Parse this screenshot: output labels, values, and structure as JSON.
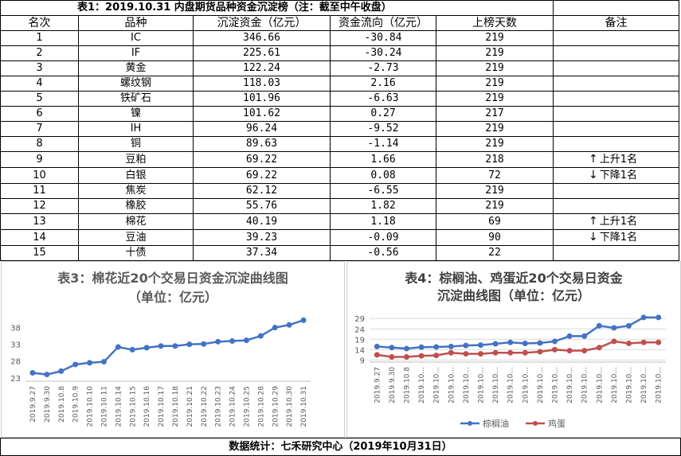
{
  "table": {
    "title": "表1：2019.10.31 内盘期货品种资金沉淀榜（注：截至中午收盘）",
    "headers": [
      "名次",
      "品种",
      "沉淀资金（亿元）",
      "资金流向（亿元）",
      "上榜天数",
      "备注"
    ],
    "rows": [
      {
        "rank": "1",
        "name": "IC",
        "fund": "346.66",
        "flow": "-30.84",
        "days": "219",
        "note": "",
        "arrow": ""
      },
      {
        "rank": "2",
        "name": "IF",
        "fund": "225.61",
        "flow": "-30.24",
        "days": "219",
        "note": "",
        "arrow": ""
      },
      {
        "rank": "3",
        "name": "黄金",
        "fund": "122.24",
        "flow": "-2.73",
        "days": "219",
        "note": "",
        "arrow": ""
      },
      {
        "rank": "4",
        "name": "螺纹钢",
        "fund": "118.03",
        "flow": "2.16",
        "days": "219",
        "note": "",
        "arrow": ""
      },
      {
        "rank": "5",
        "name": "铁矿石",
        "fund": "101.96",
        "flow": "-6.63",
        "days": "219",
        "note": "",
        "arrow": ""
      },
      {
        "rank": "6",
        "name": "镍",
        "fund": "101.62",
        "flow": "0.27",
        "days": "217",
        "note": "",
        "arrow": ""
      },
      {
        "rank": "7",
        "name": "IH",
        "fund": "96.24",
        "flow": "-9.52",
        "days": "219",
        "note": "",
        "arrow": ""
      },
      {
        "rank": "8",
        "name": "铜",
        "fund": "89.63",
        "flow": "-1.14",
        "days": "219",
        "note": "",
        "arrow": ""
      },
      {
        "rank": "9",
        "name": "豆粕",
        "fund": "69.22",
        "flow": "1.66",
        "days": "218",
        "note": "上升1名",
        "arrow": "↑"
      },
      {
        "rank": "10",
        "name": "白银",
        "fund": "69.22",
        "flow": "0.08",
        "days": "72",
        "note": "下降1名",
        "arrow": "↓"
      },
      {
        "rank": "11",
        "name": "焦炭",
        "fund": "62.12",
        "flow": "-6.55",
        "days": "219",
        "note": "",
        "arrow": ""
      },
      {
        "rank": "12",
        "name": "橡胶",
        "fund": "55.76",
        "flow": "1.82",
        "days": "219",
        "note": "",
        "arrow": ""
      },
      {
        "rank": "13",
        "name": "棉花",
        "fund": "40.19",
        "flow": "1.18",
        "days": "69",
        "note": "上升1名",
        "arrow": "↑"
      },
      {
        "rank": "14",
        "name": "豆油",
        "fund": "39.23",
        "flow": "-0.09",
        "days": "90",
        "note": "下降1名",
        "arrow": "↓"
      },
      {
        "rank": "15",
        "name": "十债",
        "fund": "37.34",
        "flow": "-0.56",
        "days": "22",
        "note": "",
        "arrow": ""
      }
    ]
  },
  "chart_data": [
    {
      "type": "line",
      "title": "表3：棉花近20个交易日资金沉淀曲线图",
      "subtitle": "（单位：亿元）",
      "x": [
        "2019.9.27",
        "2019.9.30",
        "2019.10.8",
        "2019.10.9",
        "2019.10.10",
        "2019.10.11",
        "2019.10.14",
        "2019.10.15",
        "2019.10.16",
        "2019.10.17",
        "2019.10.18",
        "2019.10.21",
        "2019.10.22",
        "2019.10.23",
        "2019.10.24",
        "2019.10.25",
        "2019.10.28",
        "2019.10.29",
        "2019.10.30",
        "2019.10.31"
      ],
      "series": [
        {
          "values": [
            24.5,
            24.0,
            25.0,
            27.0,
            27.5,
            27.8,
            32.2,
            31.4,
            32.0,
            32.5,
            32.5,
            33.0,
            33.1,
            33.8,
            34.0,
            34.2,
            35.5,
            38.0,
            38.8,
            40.2
          ],
          "color": "#4472C4"
        }
      ],
      "yticks": [
        23,
        28,
        33,
        38
      ],
      "ylim": [
        22,
        41
      ],
      "grid": false,
      "legend": "none"
    },
    {
      "type": "line",
      "title": "表4：棕榈油、鸡蛋近20个交易日资金",
      "subtitle": "沉淀曲线图（单位：亿元）",
      "x": [
        "2019.9.27",
        "2019.9.30",
        "2019.10.8",
        "2019.10...",
        "2019.10...",
        "2019.10...",
        "2019.10...",
        "2019.10...",
        "2019.10...",
        "2019.10...",
        "2019.10...",
        "2019.10...",
        "2019.10...",
        "2019.10...",
        "2019.10...",
        "2019.10...",
        "2019.10...",
        "2019.10...",
        "2019.10...",
        "2019.10..."
      ],
      "series": [
        {
          "name": "棕榈油",
          "values": [
            15.5,
            15.0,
            14.5,
            15.2,
            15.3,
            15.5,
            16.0,
            16.2,
            16.8,
            17.5,
            17.0,
            17.2,
            18.0,
            20.5,
            20.5,
            25.5,
            24.5,
            25.5,
            29.5,
            29.5
          ],
          "color": "#4472C4"
        },
        {
          "name": "鸡蛋",
          "values": [
            11.5,
            10.5,
            10.5,
            11.0,
            11.2,
            12.5,
            12.0,
            12.0,
            12.5,
            12.5,
            12.5,
            13.0,
            14.0,
            13.5,
            13.5,
            15.0,
            18.0,
            17.0,
            17.5,
            17.5
          ],
          "color": "#C0504D"
        }
      ],
      "yticks": [
        9,
        14,
        19,
        24,
        29
      ],
      "ylim": [
        8,
        31
      ],
      "grid": true,
      "legend": "bottom"
    }
  ],
  "footer": "数据统计：七禾研究中心（2019年10月31日）"
}
